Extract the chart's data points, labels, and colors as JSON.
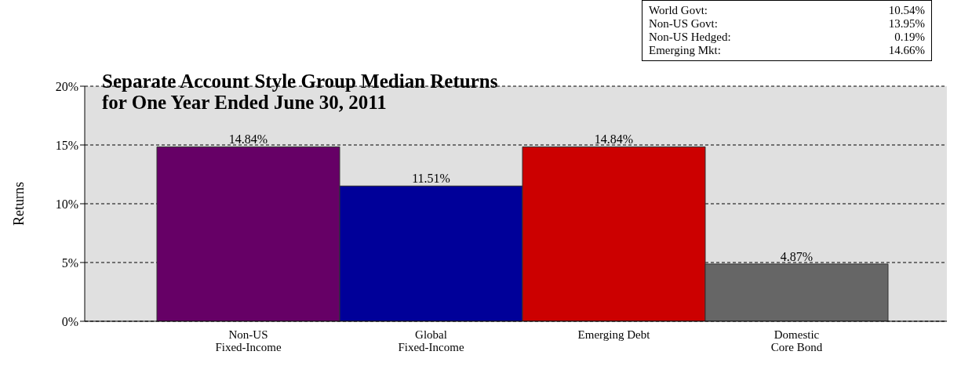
{
  "chart_data": {
    "type": "bar",
    "title": "Separate Account Style Group Median Returns\nfor One Year Ended June 30, 2011",
    "ylabel": "Returns",
    "categories": [
      "Non-US\nFixed-Income",
      "Global\nFixed-Income",
      "Emerging Debt",
      "Domestic\nCore Bond"
    ],
    "values": [
      14.84,
      11.51,
      14.84,
      4.87
    ],
    "colors": [
      "#660066",
      "#000099",
      "#cc0000",
      "#666666"
    ],
    "value_labels": [
      "14.84%",
      "11.51%",
      "14.84%",
      "4.87%"
    ],
    "ylim": [
      0,
      20
    ],
    "yticks": [
      {
        "value": 0,
        "label": "0%"
      },
      {
        "value": 5,
        "label": "5%"
      },
      {
        "value": 10,
        "label": "10%"
      },
      {
        "value": 15,
        "label": "15%"
      },
      {
        "value": 20,
        "label": "20%"
      }
    ],
    "grid": "y",
    "annotations": [
      "World Govt: 10.54%",
      "Non-US Govt: 13.95%",
      "Non-US Hedged: 0.19%",
      "Emerging Mkt: 14.66%"
    ]
  }
}
